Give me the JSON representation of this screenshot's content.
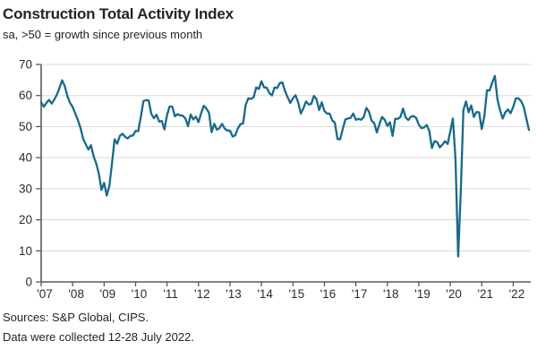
{
  "header": {
    "title": "Construction Total Activity Index",
    "subtitle": "sa, >50 = growth since previous month"
  },
  "footer": {
    "sources": "Sources: S&P Global, CIPS.",
    "collection_note": "Data were collected 12-28 July 2022."
  },
  "colors": {
    "line": "#17698c",
    "axis": "#58595b",
    "grid": "#d8d8d8",
    "text": "#2a2b31"
  },
  "chart_data": {
    "type": "line",
    "title": "Construction Total Activity Index",
    "subtitle": "sa, >50 = growth since previous month",
    "series_name": "Construction Total Activity Index (sa, >50 = growth)",
    "frequency": "monthly",
    "x_start": "Jan 2007",
    "x_end": "Jul 2022",
    "x_tick_labels": [
      "'07",
      "'08",
      "'09",
      "'10",
      "'11",
      "'12",
      "'13",
      "'14",
      "'15",
      "'16",
      "'17",
      "'18",
      "'19",
      "'20",
      "'21",
      "'22"
    ],
    "y_ticks": [
      0,
      10,
      20,
      30,
      40,
      50,
      60,
      70
    ],
    "ylim": [
      0,
      70
    ],
    "grid": "horizontal",
    "legend": "none",
    "values": [
      57.8,
      56.4,
      57.6,
      58.6,
      57.4,
      58.7,
      60.3,
      62.5,
      64.9,
      63.0,
      59.8,
      57.6,
      56.3,
      54.2,
      52.1,
      49.6,
      46.1,
      44.3,
      42.6,
      44.0,
      40.4,
      38.1,
      34.8,
      29.6,
      31.9,
      27.8,
      30.9,
      38.1,
      45.9,
      44.5,
      47.0,
      47.7,
      46.7,
      46.2,
      47.0,
      47.1,
      48.6,
      48.5,
      53.1,
      58.2,
      58.5,
      58.4,
      54.1,
      52.7,
      53.8,
      51.6,
      51.8,
      49.1,
      53.7,
      56.5,
      56.4,
      53.3,
      54.0,
      53.6,
      53.5,
      52.6,
      50.1,
      53.9,
      52.3,
      53.2,
      51.4,
      54.3,
      56.7,
      55.8,
      54.4,
      48.2,
      50.9,
      49.0,
      49.5,
      50.9,
      49.3,
      48.7,
      48.7,
      46.8,
      47.2,
      49.4,
      50.8,
      51.0,
      57.0,
      59.1,
      58.9,
      59.4,
      62.6,
      62.1,
      64.6,
      62.6,
      62.5,
      60.8,
      60.0,
      62.6,
      62.4,
      64.0,
      64.2,
      61.4,
      59.4,
      57.6,
      59.1,
      60.1,
      57.8,
      54.2,
      55.9,
      58.1,
      57.1,
      57.3,
      59.9,
      58.8,
      55.3,
      57.8,
      55.0,
      54.2,
      54.2,
      52.0,
      51.2,
      46.0,
      45.9,
      49.2,
      52.3,
      52.6,
      52.8,
      54.2,
      52.2,
      52.5,
      52.2,
      53.1,
      56.0,
      54.8,
      51.9,
      51.1,
      48.1,
      50.8,
      53.1,
      52.2,
      50.2,
      51.4,
      47.0,
      52.5,
      52.5,
      53.1,
      55.8,
      52.9,
      52.1,
      53.2,
      53.4,
      52.8,
      50.6,
      49.5,
      49.7,
      50.5,
      48.6,
      43.1,
      45.3,
      45.0,
      43.3,
      44.2,
      45.3,
      44.4,
      48.4,
      52.6,
      39.3,
      8.2,
      28.9,
      55.3,
      58.1,
      54.6,
      56.8,
      53.1,
      54.7,
      54.6,
      49.2,
      53.3,
      61.7,
      61.6,
      64.2,
      66.3,
      58.7,
      55.2,
      52.6,
      54.6,
      55.5,
      54.3,
      56.3,
      59.1,
      59.1,
      58.2,
      56.4,
      52.6,
      48.9
    ]
  }
}
